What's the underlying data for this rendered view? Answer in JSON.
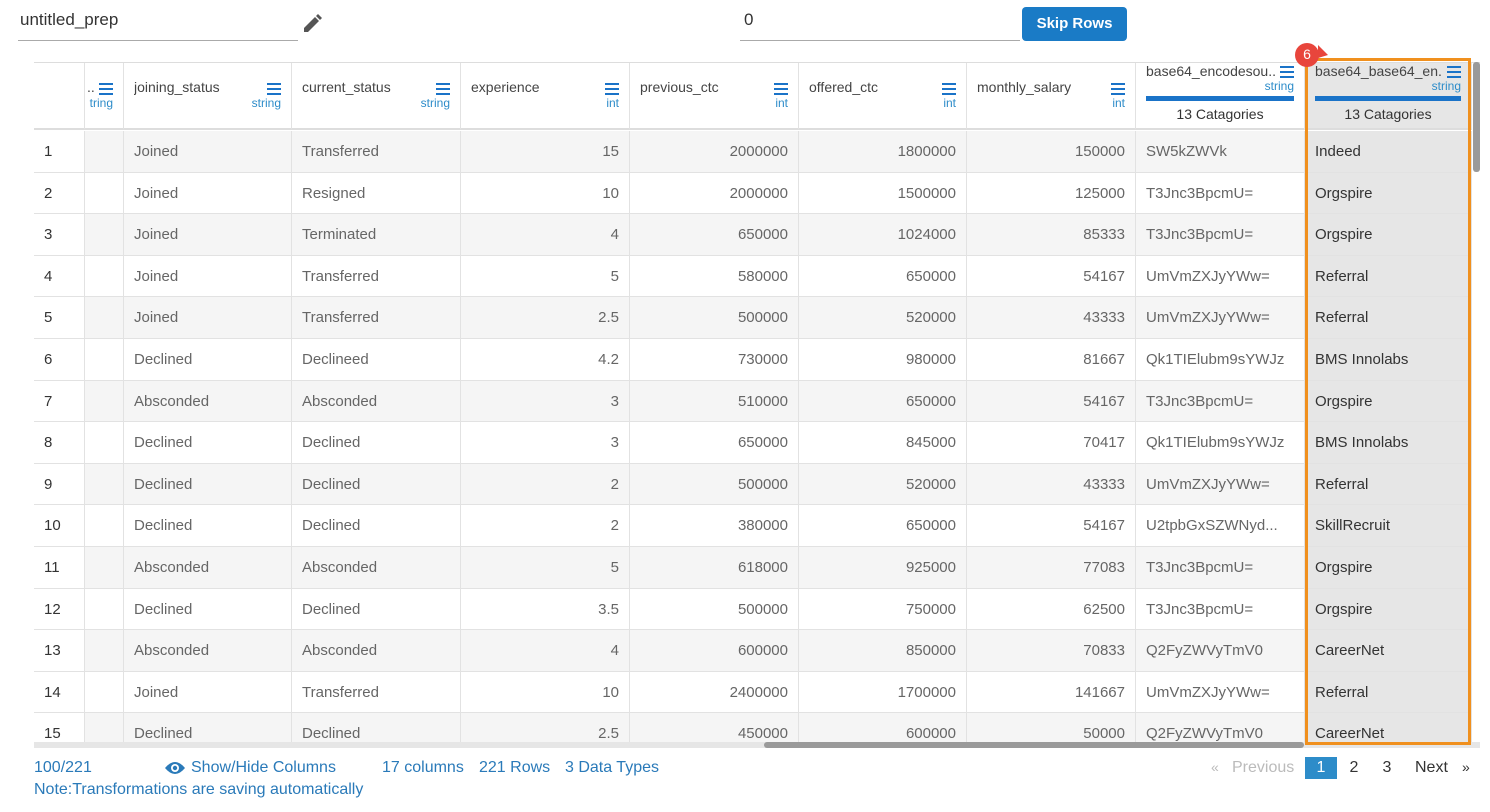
{
  "toolbar": {
    "name": "untitled_prep",
    "skip_count": "0",
    "skip_button": "Skip Rows"
  },
  "badge": "6",
  "columns": [
    {
      "name": "..",
      "type": "tring"
    },
    {
      "name": "joining_status",
      "type": "string"
    },
    {
      "name": "current_status",
      "type": "string"
    },
    {
      "name": "experience",
      "type": "int"
    },
    {
      "name": "previous_ctc",
      "type": "int"
    },
    {
      "name": "offered_ctc",
      "type": "int"
    },
    {
      "name": "monthly_salary",
      "type": "int"
    },
    {
      "name": "base64_encodesou...",
      "type": "string",
      "categories": "13 Catagories"
    },
    {
      "name": "base64_base64_en...",
      "type": "string",
      "categories": "13 Catagories"
    }
  ],
  "rows": [
    {
      "index": 1,
      "cells": [
        "Joined",
        "Transferred",
        15,
        2000000,
        1800000,
        150000,
        "SW5kZWVk",
        "Indeed"
      ]
    },
    {
      "index": 2,
      "cells": [
        "Joined",
        "Resigned",
        10,
        2000000,
        1500000,
        125000,
        "T3Jnc3BpcmU=",
        "Orgspire"
      ]
    },
    {
      "index": 3,
      "cells": [
        "Joined",
        "Terminated",
        4,
        650000,
        1024000,
        85333,
        "T3Jnc3BpcmU=",
        "Orgspire"
      ]
    },
    {
      "index": 4,
      "cells": [
        "Joined",
        "Transferred",
        5,
        580000,
        650000,
        54167,
        "UmVmZXJyYWw=",
        "Referral"
      ]
    },
    {
      "index": 5,
      "cells": [
        "Joined",
        "Transferred",
        2.5,
        500000,
        520000,
        43333,
        "UmVmZXJyYWw=",
        "Referral"
      ]
    },
    {
      "index": 6,
      "cells": [
        "Declined",
        "Declineed",
        4.2,
        730000,
        980000,
        81667,
        "Qk1TIElubm9sYWJz",
        "BMS Innolabs"
      ]
    },
    {
      "index": 7,
      "cells": [
        "Absconded",
        "Absconded",
        3,
        510000,
        650000,
        54167,
        "T3Jnc3BpcmU=",
        "Orgspire"
      ]
    },
    {
      "index": 8,
      "cells": [
        "Declined",
        "Declined",
        3,
        650000,
        845000,
        70417,
        "Qk1TIElubm9sYWJz",
        "BMS Innolabs"
      ]
    },
    {
      "index": 9,
      "cells": [
        "Declined",
        "Declined",
        2,
        500000,
        520000,
        43333,
        "UmVmZXJyYWw=",
        "Referral"
      ]
    },
    {
      "index": 10,
      "cells": [
        "Declined",
        "Declined",
        2,
        380000,
        650000,
        54167,
        "U2tpbGxSZWNyd...",
        "SkillRecruit"
      ]
    },
    {
      "index": 11,
      "cells": [
        "Absconded",
        "Absconded",
        5,
        618000,
        925000,
        77083,
        "T3Jnc3BpcmU=",
        "Orgspire"
      ]
    },
    {
      "index": 12,
      "cells": [
        "Declined",
        "Declined",
        3.5,
        500000,
        750000,
        62500,
        "T3Jnc3BpcmU=",
        "Orgspire"
      ]
    },
    {
      "index": 13,
      "cells": [
        "Absconded",
        "Absconded",
        4,
        600000,
        850000,
        70833,
        "Q2FyZWVyTmV0",
        "CareerNet"
      ]
    },
    {
      "index": 14,
      "cells": [
        "Joined",
        "Transferred",
        10,
        2400000,
        1700000,
        141667,
        "UmVmZXJyYWw=",
        "Referral"
      ]
    },
    {
      "index": 15,
      "cells": [
        "Declined",
        "Declined",
        2.5,
        450000,
        600000,
        50000,
        "Q2FyZWVyTmV0",
        "CareerNet"
      ]
    }
  ],
  "footer": {
    "count": "100/221",
    "show_hide": "Show/Hide Columns",
    "columns": "17 columns",
    "rows": "221 Rows",
    "types": "3 Data Types",
    "note": "Note:Transformations are saving automatically"
  },
  "pagination": {
    "first": "«",
    "previous": "Previous",
    "pages": [
      "1",
      "2",
      "3"
    ],
    "next": "Next",
    "last": "»"
  }
}
